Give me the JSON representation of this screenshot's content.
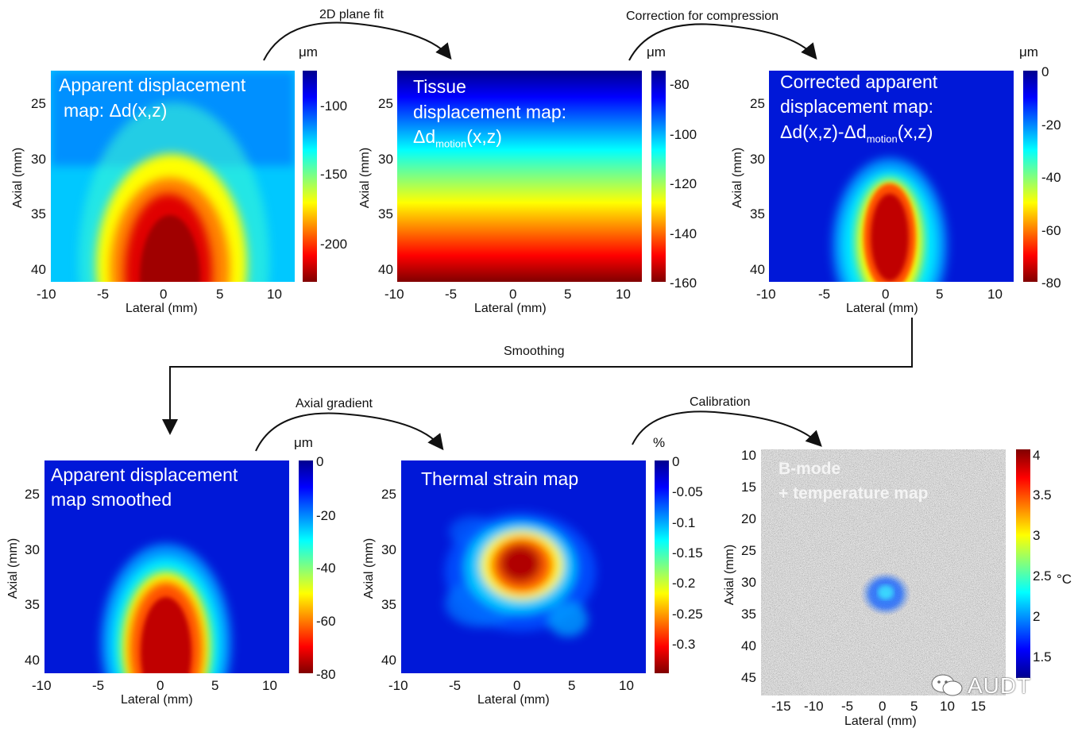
{
  "steps": {
    "plane_fit": "2D plane fit",
    "compression": "Correction for compression",
    "smoothing": "Smoothing",
    "axial_gradient": "Axial gradient",
    "calibration": "Calibration"
  },
  "panels": {
    "p1": {
      "title_line1": "Apparent displacement",
      "title_line2": "map: Δd(x,z)",
      "unit": "μm",
      "cbar_ticks": [
        "-100",
        "-150",
        "-200"
      ],
      "y_ticks": [
        "25",
        "30",
        "35",
        "40"
      ],
      "x_ticks": [
        "-10",
        "-5",
        "0",
        "5",
        "10"
      ],
      "xlabel": "Lateral (mm)",
      "ylabel": "Axial (mm)"
    },
    "p2": {
      "title_line1": "Tissue",
      "title_line2": "displacement map:",
      "title_line3_main": "Δd",
      "title_line3_sub": "motion",
      "title_line3_tail": "(x,z)",
      "unit": "μm",
      "cbar_ticks": [
        "-80",
        "-100",
        "-120",
        "-140",
        "-160"
      ],
      "y_ticks": [
        "25",
        "30",
        "35",
        "40"
      ],
      "x_ticks": [
        "-10",
        "-5",
        "0",
        "5",
        "10"
      ],
      "xlabel": "Lateral (mm)",
      "ylabel": "Axial (mm)"
    },
    "p3": {
      "title_line1": "Corrected apparent",
      "title_line2": "displacement map:",
      "title_line3_main": "Δd(x,z)-Δd",
      "title_line3_sub": "motion",
      "title_line3_tail": "(x,z)",
      "unit": "μm",
      "cbar_ticks": [
        "0",
        "-20",
        "-40",
        "-60",
        "-80"
      ],
      "y_ticks": [
        "25",
        "30",
        "35",
        "40"
      ],
      "x_ticks": [
        "-10",
        "-5",
        "0",
        "5",
        "10"
      ],
      "xlabel": "Lateral (mm)",
      "ylabel": "Axial (mm)"
    },
    "p4": {
      "title_line1": "Apparent displacement",
      "title_line2": "map smoothed",
      "unit": "μm",
      "cbar_ticks": [
        "0",
        "-20",
        "-40",
        "-60",
        "-80"
      ],
      "y_ticks": [
        "25",
        "30",
        "35",
        "40"
      ],
      "x_ticks": [
        "-10",
        "-5",
        "0",
        "5",
        "10"
      ],
      "xlabel": "Lateral (mm)",
      "ylabel": "Axial (mm)"
    },
    "p5": {
      "title_line1": "Thermal strain map",
      "unit": "%",
      "cbar_ticks": [
        "0",
        "-0.05",
        "-0.1",
        "-0.15",
        "-0.2",
        "-0.25",
        "-0.3"
      ],
      "y_ticks": [
        "25",
        "30",
        "35",
        "40"
      ],
      "x_ticks": [
        "-10",
        "-5",
        "0",
        "5",
        "10"
      ],
      "xlabel": "Lateral (mm)",
      "ylabel": "Axial (mm)"
    },
    "p6": {
      "title_line1": "B-mode",
      "title_line2": "+ temperature map",
      "unit": "°C",
      "cbar_ticks": [
        "4",
        "3.5",
        "3",
        "2.5",
        "2",
        "1.5"
      ],
      "y_ticks": [
        "10",
        "15",
        "20",
        "25",
        "30",
        "35",
        "40",
        "45"
      ],
      "x_ticks": [
        "-15",
        "-10",
        "-5",
        "0",
        "5",
        "10",
        "15"
      ],
      "xlabel": "Lateral (mm)",
      "ylabel": "Axial (mm)"
    }
  },
  "watermark": "AUDT",
  "colors": {
    "jet_dark_blue": "#00008f",
    "jet_blue": "#0000ff",
    "jet_cyan": "#00ffff",
    "jet_yellow": "#ffff00",
    "jet_red": "#ff0000",
    "jet_dark_red": "#800000"
  }
}
